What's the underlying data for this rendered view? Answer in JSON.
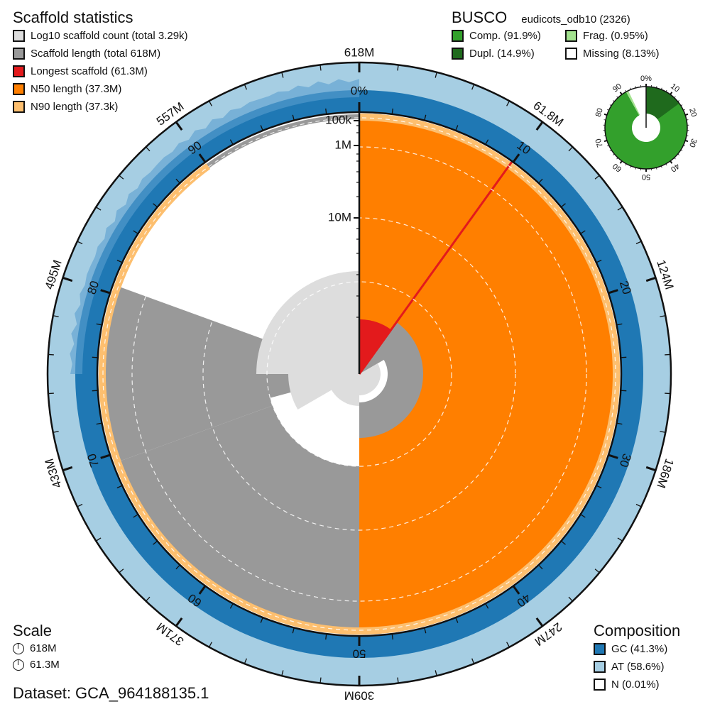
{
  "scaffold_stats": {
    "title": "Scaffold statistics",
    "items": [
      {
        "label": "Log10 scaffold count (total 3.29k)",
        "color": "#dddddd"
      },
      {
        "label": "Scaffold length (total 618M)",
        "color": "#999999"
      },
      {
        "label": "Longest scaffold (61.3M)",
        "color": "#e31a1c"
      },
      {
        "label": "N50 length (37.3M)",
        "color": "#ff7f00"
      },
      {
        "label": "N90 length (37.3k)",
        "color": "#fdbf6f"
      }
    ]
  },
  "busco": {
    "title": "BUSCO",
    "lineage": "eudicots_odb10 (2326)",
    "items": [
      {
        "label": "Comp. (91.9%)",
        "color": "#33a02c"
      },
      {
        "label": "Frag. (0.95%)",
        "color": "#a3e28f"
      },
      {
        "label": "Dupl. (14.9%)",
        "color": "#1f6a1d"
      },
      {
        "label": "Missing (8.13%)",
        "color": "#ffffff"
      }
    ],
    "ring_ticks": [
      "0%",
      "10",
      "20",
      "30",
      "40",
      "50",
      "60",
      "70",
      "80",
      "90"
    ]
  },
  "scale": {
    "title": "Scale",
    "items": [
      "618M",
      "61.3M"
    ]
  },
  "dataset": "Dataset: GCA_964188135.1",
  "composition": {
    "title": "Composition",
    "items": [
      {
        "label": "GC (41.3%)",
        "color": "#1f78b4"
      },
      {
        "label": "AT (58.6%)",
        "color": "#a6cee3"
      },
      {
        "label": "N (0.01%)",
        "color": "#ffffff"
      }
    ]
  },
  "chart_data": {
    "type": "snail",
    "title": "Scaffold statistics",
    "dataset": "GCA_964188135.1",
    "total_length": "618M",
    "scaffold_count": "3.29k",
    "longest_scaffold": "61.3M",
    "n50": "37.3M",
    "n90": "37.3k",
    "outer_axis_labels": [
      "618M",
      "61.8M",
      "124M",
      "186M",
      "247M",
      "309M",
      "371M",
      "433M",
      "495M",
      "557M"
    ],
    "percent_axis_labels": [
      "0%",
      "10",
      "20",
      "30",
      "40",
      "50",
      "60",
      "70",
      "80",
      "90"
    ],
    "radial_axis_labels": [
      "100k",
      "1M",
      "10M"
    ],
    "composition": {
      "GC": 41.3,
      "AT": 58.6,
      "N": 0.01
    },
    "busco": {
      "lineage": "eudicots_odb10",
      "n": 2326,
      "complete": 91.9,
      "duplicated": 14.9,
      "fragmented": 0.95,
      "missing": 8.13
    }
  }
}
